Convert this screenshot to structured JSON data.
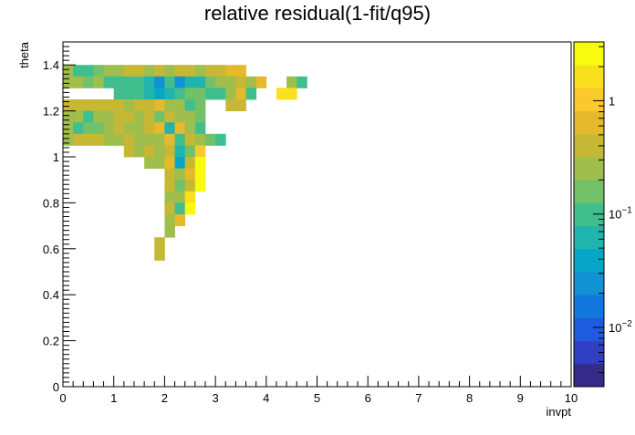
{
  "chart_data": {
    "type": "heatmap",
    "title": "relative residual(1-fit/q95)",
    "xlabel": "invpt",
    "ylabel": "theta",
    "xlim": [
      0,
      10
    ],
    "ylim": [
      0,
      1.5
    ],
    "x_ticks": [
      "0",
      "1",
      "2",
      "3",
      "4",
      "5",
      "6",
      "7",
      "8",
      "9",
      "10"
    ],
    "y_ticks": [
      "0",
      "0.2",
      "0.4",
      "0.6",
      "0.8",
      "1",
      "1.2",
      "1.4"
    ],
    "colorbar": {
      "scale": "log",
      "range": [
        0.003,
        3.3
      ],
      "ticks": [
        {
          "value": 0.01,
          "label": "10",
          "exponent": "−2"
        },
        {
          "value": 0.1,
          "label": "10",
          "exponent": "−1"
        },
        {
          "value": 1,
          "label": "1",
          "exponent": ""
        }
      ]
    },
    "bin_size": {
      "dx": 0.2,
      "dy": 0.05
    },
    "bins": [
      {
        "x": 0.0,
        "y": 1.35,
        "v": 0.3
      },
      {
        "x": 0.2,
        "y": 1.35,
        "v": 0.08
      },
      {
        "x": 0.4,
        "y": 1.35,
        "v": 0.12
      },
      {
        "x": 0.6,
        "y": 1.35,
        "v": 0.2
      },
      {
        "x": 0.8,
        "y": 1.35,
        "v": 0.25
      },
      {
        "x": 1.0,
        "y": 1.35,
        "v": 0.3
      },
      {
        "x": 1.2,
        "y": 1.35,
        "v": 0.4
      },
      {
        "x": 1.4,
        "y": 1.35,
        "v": 0.35
      },
      {
        "x": 1.6,
        "y": 1.35,
        "v": 0.3
      },
      {
        "x": 1.8,
        "y": 1.35,
        "v": 0.4
      },
      {
        "x": 2.0,
        "y": 1.35,
        "v": 0.3
      },
      {
        "x": 2.2,
        "y": 1.35,
        "v": 0.35
      },
      {
        "x": 2.4,
        "y": 1.35,
        "v": 0.4
      },
      {
        "x": 2.6,
        "y": 1.35,
        "v": 0.3
      },
      {
        "x": 2.8,
        "y": 1.35,
        "v": 0.35
      },
      {
        "x": 3.0,
        "y": 1.35,
        "v": 0.4
      },
      {
        "x": 3.2,
        "y": 1.35,
        "v": 0.8
      },
      {
        "x": 3.4,
        "y": 1.35,
        "v": 0.6
      },
      {
        "x": 0.0,
        "y": 1.3,
        "v": 0.25
      },
      {
        "x": 0.2,
        "y": 1.3,
        "v": 0.3
      },
      {
        "x": 0.4,
        "y": 1.3,
        "v": 0.2
      },
      {
        "x": 0.6,
        "y": 1.3,
        "v": 0.3
      },
      {
        "x": 0.8,
        "y": 1.3,
        "v": 0.12
      },
      {
        "x": 1.0,
        "y": 1.3,
        "v": 0.1
      },
      {
        "x": 1.2,
        "y": 1.3,
        "v": 0.08
      },
      {
        "x": 1.4,
        "y": 1.3,
        "v": 0.1
      },
      {
        "x": 1.6,
        "y": 1.3,
        "v": 0.06
      },
      {
        "x": 1.8,
        "y": 1.3,
        "v": 0.03
      },
      {
        "x": 2.0,
        "y": 1.3,
        "v": 0.08
      },
      {
        "x": 2.2,
        "y": 1.3,
        "v": 0.02
      },
      {
        "x": 2.4,
        "y": 1.3,
        "v": 0.05
      },
      {
        "x": 2.6,
        "y": 1.3,
        "v": 0.07
      },
      {
        "x": 2.8,
        "y": 1.3,
        "v": 0.2
      },
      {
        "x": 3.0,
        "y": 1.3,
        "v": 0.25
      },
      {
        "x": 3.2,
        "y": 1.3,
        "v": 0.3
      },
      {
        "x": 3.4,
        "y": 1.3,
        "v": 0.4
      },
      {
        "x": 3.6,
        "y": 1.3,
        "v": 0.3
      },
      {
        "x": 3.8,
        "y": 1.3,
        "v": 0.6
      },
      {
        "x": 4.4,
        "y": 1.3,
        "v": 0.25
      },
      {
        "x": 4.6,
        "y": 1.3,
        "v": 0.12
      },
      {
        "x": 1.0,
        "y": 1.25,
        "v": 0.1
      },
      {
        "x": 1.2,
        "y": 1.25,
        "v": 0.12
      },
      {
        "x": 1.4,
        "y": 1.25,
        "v": 0.1
      },
      {
        "x": 1.6,
        "y": 1.25,
        "v": 0.06
      },
      {
        "x": 1.8,
        "y": 1.25,
        "v": 0.04
      },
      {
        "x": 2.0,
        "y": 1.25,
        "v": 0.05
      },
      {
        "x": 2.2,
        "y": 1.25,
        "v": 0.12
      },
      {
        "x": 2.4,
        "y": 1.25,
        "v": 0.2
      },
      {
        "x": 2.6,
        "y": 1.25,
        "v": 0.15
      },
      {
        "x": 2.8,
        "y": 1.25,
        "v": 0.1
      },
      {
        "x": 3.0,
        "y": 1.25,
        "v": 0.12
      },
      {
        "x": 3.2,
        "y": 1.25,
        "v": 0.25
      },
      {
        "x": 3.4,
        "y": 1.25,
        "v": 0.7
      },
      {
        "x": 3.6,
        "y": 1.25,
        "v": 0.08
      },
      {
        "x": 4.2,
        "y": 1.25,
        "v": 1.6
      },
      {
        "x": 4.4,
        "y": 1.25,
        "v": 1.7
      },
      {
        "x": 0.0,
        "y": 1.2,
        "v": 0.35
      },
      {
        "x": 0.2,
        "y": 1.2,
        "v": 0.4
      },
      {
        "x": 0.4,
        "y": 1.2,
        "v": 0.35
      },
      {
        "x": 0.6,
        "y": 1.2,
        "v": 0.4
      },
      {
        "x": 0.8,
        "y": 1.2,
        "v": 0.35
      },
      {
        "x": 1.0,
        "y": 1.2,
        "v": 0.4
      },
      {
        "x": 1.2,
        "y": 1.2,
        "v": 0.3
      },
      {
        "x": 1.4,
        "y": 1.2,
        "v": 0.35
      },
      {
        "x": 1.6,
        "y": 1.2,
        "v": 0.4
      },
      {
        "x": 1.8,
        "y": 1.2,
        "v": 0.6
      },
      {
        "x": 2.0,
        "y": 1.2,
        "v": 0.25
      },
      {
        "x": 2.2,
        "y": 1.2,
        "v": 0.3
      },
      {
        "x": 2.4,
        "y": 1.2,
        "v": 0.12
      },
      {
        "x": 2.6,
        "y": 1.2,
        "v": 0.15
      },
      {
        "x": 3.2,
        "y": 1.2,
        "v": 0.4
      },
      {
        "x": 3.4,
        "y": 1.2,
        "v": 0.4
      },
      {
        "x": 0.0,
        "y": 1.15,
        "v": 0.3
      },
      {
        "x": 0.2,
        "y": 1.15,
        "v": 0.3
      },
      {
        "x": 0.4,
        "y": 1.15,
        "v": 0.12
      },
      {
        "x": 0.6,
        "y": 1.15,
        "v": 0.25
      },
      {
        "x": 0.8,
        "y": 1.15,
        "v": 0.3
      },
      {
        "x": 1.0,
        "y": 1.15,
        "v": 0.5
      },
      {
        "x": 1.2,
        "y": 1.15,
        "v": 0.35
      },
      {
        "x": 1.4,
        "y": 1.15,
        "v": 0.3
      },
      {
        "x": 1.6,
        "y": 1.15,
        "v": 0.4
      },
      {
        "x": 1.8,
        "y": 1.15,
        "v": 0.2
      },
      {
        "x": 2.0,
        "y": 1.15,
        "v": 0.4
      },
      {
        "x": 2.2,
        "y": 1.15,
        "v": 0.3
      },
      {
        "x": 2.4,
        "y": 1.15,
        "v": 0.3
      },
      {
        "x": 2.6,
        "y": 1.15,
        "v": 0.2
      },
      {
        "x": 0.0,
        "y": 1.1,
        "v": 0.3
      },
      {
        "x": 0.2,
        "y": 1.1,
        "v": 0.12
      },
      {
        "x": 0.4,
        "y": 1.1,
        "v": 0.2
      },
      {
        "x": 0.6,
        "y": 1.1,
        "v": 0.15
      },
      {
        "x": 0.8,
        "y": 1.1,
        "v": 0.25
      },
      {
        "x": 1.0,
        "y": 1.1,
        "v": 0.35
      },
      {
        "x": 1.2,
        "y": 1.1,
        "v": 0.25
      },
      {
        "x": 1.4,
        "y": 1.1,
        "v": 0.3
      },
      {
        "x": 1.6,
        "y": 1.1,
        "v": 0.4
      },
      {
        "x": 1.8,
        "y": 1.1,
        "v": 0.6
      },
      {
        "x": 2.0,
        "y": 1.1,
        "v": 0.05
      },
      {
        "x": 2.2,
        "y": 1.1,
        "v": 0.8
      },
      {
        "x": 2.4,
        "y": 1.1,
        "v": 0.3
      },
      {
        "x": 2.6,
        "y": 1.1,
        "v": 0.12
      },
      {
        "x": 0.0,
        "y": 1.05,
        "v": 0.3
      },
      {
        "x": 0.2,
        "y": 1.05,
        "v": 0.35
      },
      {
        "x": 0.4,
        "y": 1.05,
        "v": 0.4
      },
      {
        "x": 0.6,
        "y": 1.05,
        "v": 0.35
      },
      {
        "x": 0.8,
        "y": 1.05,
        "v": 0.3
      },
      {
        "x": 1.0,
        "y": 1.05,
        "v": 0.3
      },
      {
        "x": 1.2,
        "y": 1.05,
        "v": 0.35
      },
      {
        "x": 1.4,
        "y": 1.05,
        "v": 0.3
      },
      {
        "x": 1.6,
        "y": 1.05,
        "v": 0.3
      },
      {
        "x": 1.8,
        "y": 1.05,
        "v": 0.3
      },
      {
        "x": 2.0,
        "y": 1.05,
        "v": 0.7
      },
      {
        "x": 2.2,
        "y": 1.05,
        "v": 0.12
      },
      {
        "x": 2.4,
        "y": 1.05,
        "v": 0.35
      },
      {
        "x": 2.6,
        "y": 1.05,
        "v": 0.3
      },
      {
        "x": 2.8,
        "y": 1.05,
        "v": 0.2
      },
      {
        "x": 3.0,
        "y": 1.05,
        "v": 0.12
      },
      {
        "x": 1.2,
        "y": 1.0,
        "v": 0.35
      },
      {
        "x": 1.4,
        "y": 1.0,
        "v": 0.3
      },
      {
        "x": 1.6,
        "y": 1.0,
        "v": 0.35
      },
      {
        "x": 1.8,
        "y": 1.0,
        "v": 0.3
      },
      {
        "x": 2.0,
        "y": 1.0,
        "v": 0.35
      },
      {
        "x": 2.2,
        "y": 1.0,
        "v": 0.05
      },
      {
        "x": 2.4,
        "y": 1.0,
        "v": 0.15
      },
      {
        "x": 2.6,
        "y": 1.0,
        "v": 1.2
      },
      {
        "x": 1.6,
        "y": 0.95,
        "v": 0.3
      },
      {
        "x": 1.8,
        "y": 0.95,
        "v": 0.3
      },
      {
        "x": 2.0,
        "y": 0.95,
        "v": 0.6
      },
      {
        "x": 2.2,
        "y": 0.95,
        "v": 0.04
      },
      {
        "x": 2.4,
        "y": 0.95,
        "v": 0.35
      },
      {
        "x": 2.6,
        "y": 0.95,
        "v": 2.5
      },
      {
        "x": 2.0,
        "y": 0.9,
        "v": 0.35
      },
      {
        "x": 2.2,
        "y": 0.9,
        "v": 0.3
      },
      {
        "x": 2.4,
        "y": 0.9,
        "v": 0.6
      },
      {
        "x": 2.6,
        "y": 0.9,
        "v": 2.5
      },
      {
        "x": 2.0,
        "y": 0.85,
        "v": 0.35
      },
      {
        "x": 2.2,
        "y": 0.85,
        "v": 0.15
      },
      {
        "x": 2.4,
        "y": 0.85,
        "v": 0.35
      },
      {
        "x": 2.6,
        "y": 0.85,
        "v": 2.5
      },
      {
        "x": 2.0,
        "y": 0.8,
        "v": 0.3
      },
      {
        "x": 2.2,
        "y": 0.8,
        "v": 0.3
      },
      {
        "x": 2.4,
        "y": 0.8,
        "v": 1.6
      },
      {
        "x": 2.0,
        "y": 0.75,
        "v": 0.35
      },
      {
        "x": 2.2,
        "y": 0.75,
        "v": 0.08
      },
      {
        "x": 2.4,
        "y": 0.75,
        "v": 2.2
      },
      {
        "x": 2.0,
        "y": 0.7,
        "v": 0.3
      },
      {
        "x": 2.2,
        "y": 0.7,
        "v": 0.6
      },
      {
        "x": 2.0,
        "y": 0.65,
        "v": 0.3
      },
      {
        "x": 1.8,
        "y": 0.6,
        "v": 0.4
      },
      {
        "x": 1.8,
        "y": 0.55,
        "v": 0.4
      }
    ],
    "colors": {
      "palette": [
        "#352a87",
        "#2f40c4",
        "#1f5bde",
        "#1177dc",
        "#1291d4",
        "#08a6c6",
        "#1fb5ad",
        "#41be8d",
        "#72c169",
        "#9fbe4c",
        "#c6b834",
        "#e5b92c",
        "#fbc82e",
        "#f9e01c",
        "#f9fb0e"
      ],
      "background": "#ffffff",
      "frame": "#000000"
    }
  }
}
